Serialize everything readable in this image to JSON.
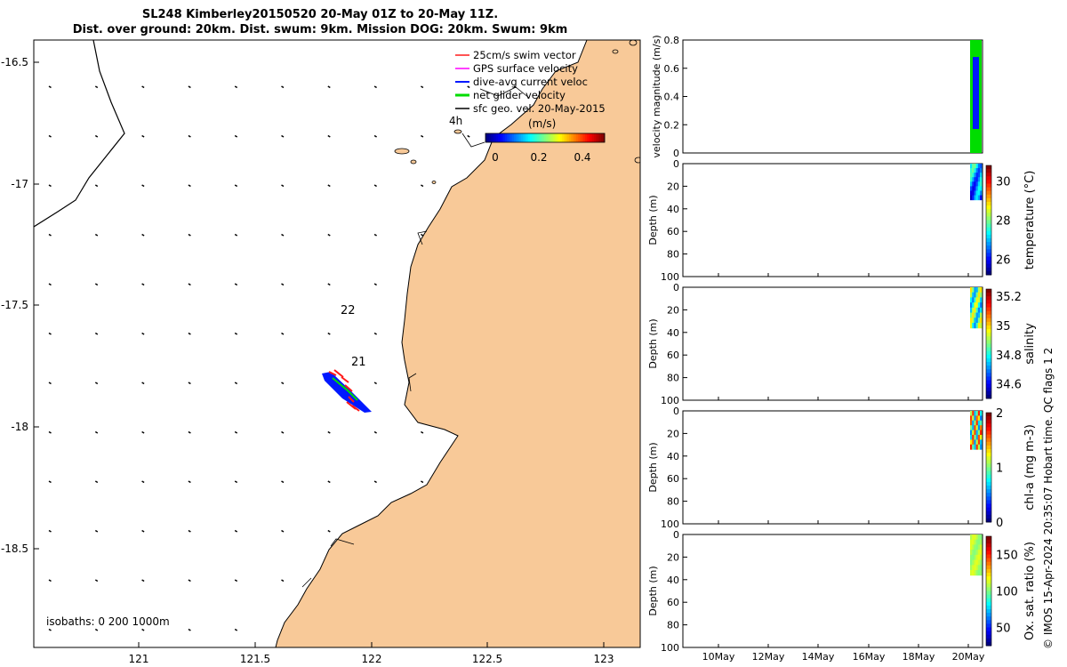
{
  "figure": {
    "title_line1": "SL248 Kimberley20150520 20-May 01Z to 20-May 11Z.",
    "title_line2": "Dist. over ground: 20km. Dist. swum: 9km. Mission DOG: 20km. Swum: 9km",
    "credit": "© IMOS 15-Apr-2024 20:35:07 Hobart time. QC flags 1  2"
  },
  "colors": {
    "land": "#f8c998",
    "glider_track_blue": "#0018ff",
    "swim_vector_red": "#ff1a1a",
    "gps_velocity": "#ff00ff",
    "net_velocity": "#00dd00"
  },
  "chart_data": [
    {
      "type": "map",
      "xlim": [
        120.6,
        123.15
      ],
      "ylim": [
        -18.9,
        -16.4
      ],
      "x_ticks": [
        121,
        121.5,
        122,
        122.5,
        123
      ],
      "x_tick_labels": [
        "121",
        "121.5",
        "122",
        "122.5",
        "123"
      ],
      "y_ticks": [
        -16.5,
        -17,
        -17.5,
        -18,
        -18.5
      ],
      "y_tick_labels": [
        "-16.5",
        "-17",
        "-17.5",
        "-18",
        "-18.5"
      ],
      "legend": {
        "placement": "top-right",
        "entries": [
          {
            "label": "25cm/s swim vector",
            "color": "#ff1a1a"
          },
          {
            "label": "GPS surface velocity",
            "color": "#ff00ff"
          },
          {
            "label": "dive-avg current veloc",
            "color": "#0018ff"
          },
          {
            "label": "net glider velocity",
            "color": "#00dd00"
          },
          {
            "label": "sfc geo. vel. 20-May-2015",
            "color": "#000000"
          }
        ],
        "note": "4h"
      },
      "colorbar": {
        "label": "(m/s)",
        "ticks": [
          0,
          0.2,
          0.4
        ],
        "range": [
          0,
          0.5
        ]
      },
      "track_labels": [
        {
          "text": "22",
          "x": 121.89,
          "y": -17.52
        },
        {
          "text": "21",
          "x": 121.93,
          "y": -17.73
        }
      ],
      "track": [
        {
          "x": 121.78,
          "y": -17.79
        },
        {
          "x": 121.85,
          "y": -17.83
        },
        {
          "x": 121.9,
          "y": -17.88
        },
        {
          "x": 121.95,
          "y": -17.93
        }
      ],
      "isobaths_label": "isobaths: 0   200  1000m"
    },
    {
      "type": "area",
      "ylabel": "velocity magnitude (m/s)",
      "ylim": [
        0,
        0.8
      ],
      "y_ticks": [
        0,
        0.2,
        0.4,
        0.6,
        0.8
      ],
      "y_tick_labels": [
        "0",
        "0.2",
        "0.4",
        "0.6",
        "0.8"
      ],
      "series": [
        {
          "color": "#00dd00",
          "values_max": 0.8
        },
        {
          "color": "#0018ff",
          "values_max": 0.68
        }
      ]
    },
    {
      "type": "heatmap",
      "ylabel": "Depth (m)",
      "colorbar_label": "temperature (°C)",
      "ylim": [
        0,
        100
      ],
      "y_tick_labels": [
        "0",
        "20",
        "40",
        "60",
        "80",
        "100"
      ],
      "colorbar_ticks": [
        "30",
        "28",
        "26"
      ],
      "colorbar_range": [
        25.2,
        30.8
      ],
      "max_depth": 32
    },
    {
      "type": "heatmap",
      "ylabel": "Depth (m)",
      "colorbar_label": "salinity",
      "ylim": [
        0,
        100
      ],
      "y_tick_labels": [
        "0",
        "20",
        "40",
        "60",
        "80",
        "100"
      ],
      "colorbar_ticks": [
        "35.2",
        "35",
        "34.8",
        "34.6"
      ],
      "colorbar_range": [
        34.5,
        35.25
      ],
      "max_depth": 36
    },
    {
      "type": "heatmap",
      "ylabel": "Depth (m)",
      "colorbar_label": "chl-a (mg m-3)",
      "ylim": [
        0,
        100
      ],
      "y_tick_labels": [
        "0",
        "20",
        "40",
        "60",
        "80",
        "100"
      ],
      "colorbar_ticks": [
        "2",
        "1",
        "0"
      ],
      "colorbar_range": [
        0,
        2
      ],
      "max_depth": 34
    },
    {
      "type": "heatmap",
      "ylabel": "Depth (m)",
      "colorbar_label": "Ox. sat. ratio (%)",
      "ylim": [
        0,
        100
      ],
      "y_tick_labels": [
        "0",
        "20",
        "40",
        "60",
        "80",
        "100"
      ],
      "colorbar_ticks": [
        "150",
        "100",
        "50"
      ],
      "colorbar_range": [
        25,
        175
      ],
      "max_depth": 36,
      "x_tick_labels": [
        "10May",
        "12May",
        "14May",
        "16May",
        "18May",
        "20May"
      ]
    }
  ]
}
